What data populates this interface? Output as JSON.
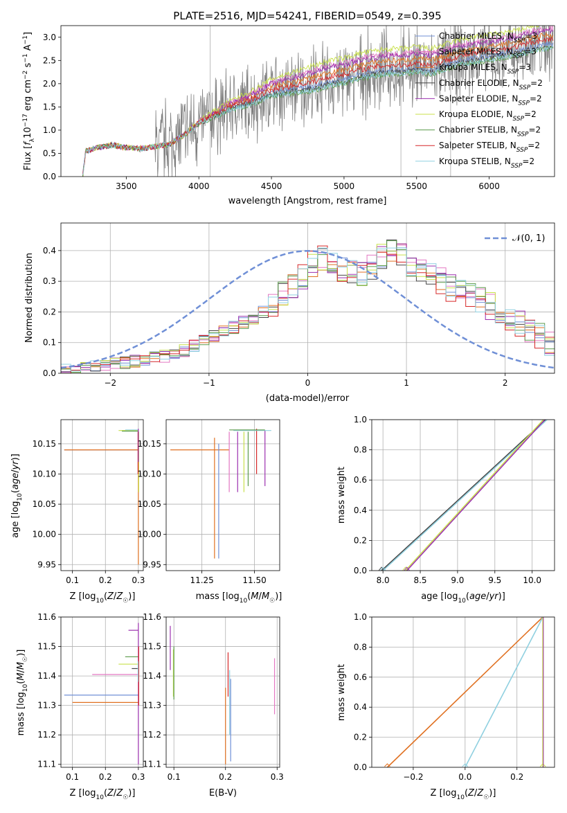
{
  "colors": {
    "c1": "#6f8fd6",
    "c2": "#e377c2",
    "c3": "#e07020",
    "c4": "#444444",
    "c5": "#9b2fae",
    "c6": "#c8e04a",
    "c7": "#5a9a4a",
    "c8": "#d62728",
    "c9": "#8fd0e0",
    "spec": "#7f7f7f",
    "vline": "#bbbbbb"
  },
  "chart_data": [
    {
      "id": "spectrum",
      "type": "line",
      "title": "PLATE=2516, MJD=54241, FIBERID=0549, z=0.395",
      "xlabel": "wavelength [Angstrom, rest frame]",
      "ylabel": "Flux [f_λ 10^-17 erg cm^-2 s^-1 A^-1]",
      "xlim": [
        3050,
        6450
      ],
      "ylim": [
        0,
        3.25
      ],
      "xticks": [
        3500,
        4000,
        4500,
        5000,
        5500,
        6000
      ],
      "yticks": [
        0.0,
        0.5,
        1.0,
        1.5,
        2.0,
        2.5,
        3.0
      ],
      "legend_position": "top-right",
      "legend": [
        {
          "label": "Chabrier MILES, N",
          "sub": "SSP",
          "val": "=3"
        },
        {
          "label": "Salpeter MILES, N",
          "sub": "SSP",
          "val": "=3"
        },
        {
          "label": "Kroupa MILES, N",
          "sub": "SSP",
          "val": "=3"
        },
        {
          "label": "Chabrier ELODIE, N",
          "sub": "SSP",
          "val": "=2"
        },
        {
          "label": "Salpeter ELODIE, N",
          "sub": "SSP",
          "val": "=2"
        },
        {
          "label": "Kroupa ELODIE, N",
          "sub": "SSP",
          "val": "=2"
        },
        {
          "label": "Chabrier STELIB, N",
          "sub": "SSP",
          "val": "=2"
        },
        {
          "label": "Salpeter STELIB, N",
          "sub": "SSP",
          "val": "=2"
        },
        {
          "label": "Kroupa STELIB, N",
          "sub": "SSP",
          "val": "=2"
        }
      ],
      "model_curve": {
        "x": [
          3200,
          3220,
          3300,
          3400,
          3500,
          3600,
          3700,
          3800,
          3900,
          4000,
          4100,
          4200,
          4300,
          4400,
          4500,
          4600,
          4700,
          4800,
          4900,
          5000,
          5100,
          5200,
          5300,
          5400,
          5500,
          5600,
          5700,
          5800,
          5900,
          6000,
          6100,
          6200,
          6300,
          6400
        ],
        "y": [
          0.0,
          0.55,
          0.62,
          0.68,
          0.62,
          0.6,
          0.65,
          0.7,
          0.9,
          1.15,
          1.3,
          1.45,
          1.55,
          1.65,
          1.8,
          1.85,
          1.9,
          1.95,
          2.05,
          2.1,
          2.2,
          2.25,
          2.3,
          2.3,
          2.35,
          2.3,
          2.4,
          2.5,
          2.55,
          2.6,
          2.65,
          2.7,
          2.8,
          2.85
        ]
      },
      "vertical_lines_x": [
        4078,
        5392,
        5734
      ]
    },
    {
      "id": "residuals",
      "type": "line",
      "xlabel": "(data-model)/error",
      "ylabel": "Normed distribution",
      "xlim": [
        -2.5,
        2.5
      ],
      "ylim": [
        0,
        0.49
      ],
      "xticks": [
        -2,
        -1,
        0,
        1,
        2
      ],
      "yticks": [
        0.0,
        0.1,
        0.2,
        0.3,
        0.4
      ],
      "legend_position": "top-right",
      "legend_label": "𝒩(0, 1)",
      "bin_edges_start": -2.5,
      "bin_width": 0.1,
      "base_hist": [
        0.01,
        0.01,
        0.015,
        0.02,
        0.025,
        0.03,
        0.035,
        0.04,
        0.045,
        0.05,
        0.055,
        0.065,
        0.075,
        0.09,
        0.105,
        0.12,
        0.135,
        0.15,
        0.165,
        0.18,
        0.2,
        0.22,
        0.26,
        0.29,
        0.31,
        0.36,
        0.375,
        0.36,
        0.34,
        0.33,
        0.33,
        0.35,
        0.38,
        0.4,
        0.38,
        0.36,
        0.34,
        0.32,
        0.3,
        0.28,
        0.27,
        0.25,
        0.24,
        0.22,
        0.2,
        0.18,
        0.16,
        0.14,
        0.12,
        0.1
      ]
    },
    {
      "id": "age-vs-Z",
      "type": "scatter",
      "xlabel": "Z [log10(Z/Z☉)]",
      "ylabel": "age  [log10(age/yr)]",
      "xlim": [
        0.065,
        0.315
      ],
      "ylim": [
        9.94,
        10.19
      ],
      "xticks": [
        0.1,
        0.2,
        0.3
      ],
      "yticks": [
        9.95,
        10.0,
        10.05,
        10.1,
        10.15
      ],
      "ytick_labels": [
        "9.95",
        "10.00",
        "10.05",
        "10.10",
        "10.15"
      ]
    },
    {
      "id": "age-vs-mass",
      "type": "scatter",
      "xlabel": "mass [log10(M/M☉)]",
      "xlim": [
        11.08,
        11.62
      ],
      "ylim": [
        9.94,
        10.19
      ],
      "xticks": [
        11.25,
        11.5
      ],
      "xtick_labels": [
        "11.25",
        "11.50"
      ],
      "yticks": [
        9.95,
        10.0,
        10.05,
        10.1,
        10.15
      ],
      "ytick_labels": [
        "9.95",
        "10.00",
        "10.05",
        "10.10",
        "10.15"
      ]
    },
    {
      "id": "massweight-vs-age",
      "type": "line",
      "xlabel": "age  [log10(age/yr)]",
      "ylabel": "mass weight",
      "xlim": [
        7.85,
        10.3
      ],
      "ylim": [
        0,
        1.0
      ],
      "xticks": [
        8.0,
        8.5,
        9.0,
        9.5,
        10.0
      ],
      "yticks": [
        0.0,
        0.2,
        0.4,
        0.6,
        0.8,
        1.0
      ],
      "series": [
        {
          "x": [
            7.98,
            10.18
          ],
          "y": [
            0.0,
            1.0
          ]
        },
        {
          "x": [
            8.0,
            10.2
          ],
          "y": [
            0.0,
            1.0
          ]
        },
        {
          "x": [
            8.3,
            10.15
          ],
          "y": [
            0.0,
            1.0
          ]
        },
        {
          "x": [
            8.32,
            10.17
          ],
          "y": [
            0.0,
            1.0
          ]
        }
      ]
    },
    {
      "id": "mass-vs-Z",
      "type": "scatter",
      "xlabel": "Z [log10(Z/Z☉)]",
      "ylabel": "mass [log10(M/M☉)]",
      "xlim": [
        0.065,
        0.315
      ],
      "ylim": [
        11.09,
        11.6
      ],
      "xticks": [
        0.1,
        0.2,
        0.3
      ],
      "yticks": [
        11.1,
        11.2,
        11.3,
        11.4,
        11.5,
        11.6
      ]
    },
    {
      "id": "mass-vs-ebv",
      "type": "scatter",
      "xlabel": "E(B-V)",
      "xlim": [
        0.085,
        0.305
      ],
      "ylim": [
        11.09,
        11.6
      ],
      "xticks": [
        0.1,
        0.2,
        0.3
      ],
      "yticks": [
        11.1,
        11.2,
        11.3,
        11.4,
        11.5,
        11.6
      ]
    },
    {
      "id": "massweight-vs-Z",
      "type": "line",
      "xlabel": "Z [log10(Z/Z☉)]",
      "ylabel": "mass weight",
      "xlim": [
        -0.36,
        0.345
      ],
      "ylim": [
        0,
        1.0
      ],
      "xticks": [
        -0.2,
        0.0,
        0.2
      ],
      "xtick_labels": [
        "−0.2",
        "0.0",
        "0.2"
      ],
      "yticks": [
        0.0,
        0.2,
        0.4,
        0.6,
        0.8,
        1.0
      ],
      "series": [
        {
          "x": [
            -0.3,
            0.3
          ],
          "y": [
            0.0,
            1.0
          ]
        },
        {
          "x": [
            0.0,
            0.3
          ],
          "y": [
            0.0,
            1.0
          ]
        },
        {
          "x": [
            0.3,
            0.3
          ],
          "y": [
            0.0,
            1.0
          ]
        }
      ]
    }
  ]
}
